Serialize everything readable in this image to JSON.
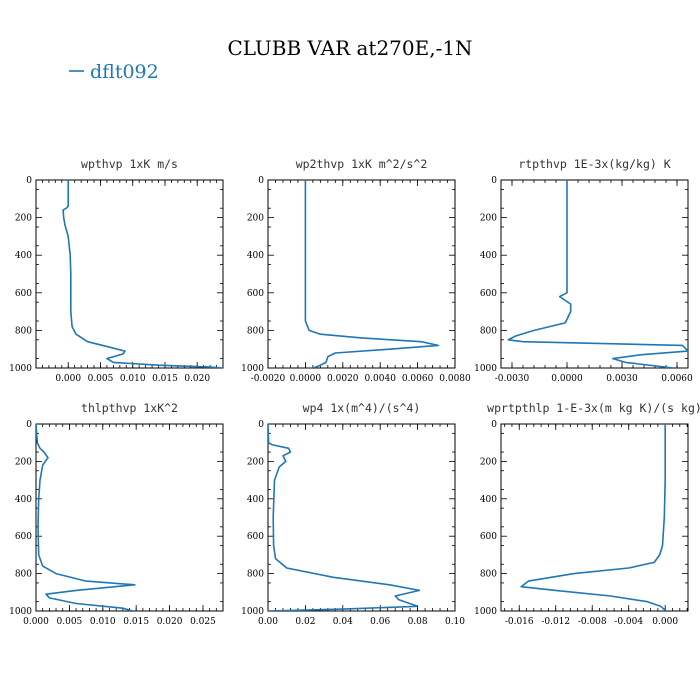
{
  "figure": {
    "title": "CLUBB VAR at270E,-1N",
    "legend": {
      "label": "dflt092",
      "color": "#1f77b4"
    }
  },
  "chart_data": [
    {
      "type": "line",
      "title": "wpthvp  1xK m/s",
      "xlim": [
        -0.005,
        0.024
      ],
      "ylim": [
        1000,
        0
      ],
      "xticks": [
        0.0,
        0.005,
        0.01,
        0.015,
        0.02
      ],
      "xtick_labels": [
        "0.000",
        "0.005",
        "0.010",
        "0.015",
        "0.020"
      ],
      "yticks": [
        0,
        200,
        400,
        600,
        800,
        1000
      ],
      "ytick_labels": [
        "0",
        "200",
        "400",
        "600",
        "800",
        "1000"
      ],
      "x": [
        0.0,
        0.0,
        -0.0003,
        -0.0008,
        -0.0007,
        -0.0005,
        0.0,
        0.0003,
        0.0004,
        0.0004,
        0.0004,
        0.0006,
        0.0012,
        0.003,
        0.0065,
        0.0088,
        0.0085,
        0.006,
        0.007,
        0.014,
        0.022,
        0.024
      ],
      "y": [
        0,
        140,
        150,
        160,
        200,
        240,
        300,
        400,
        500,
        600,
        700,
        780,
        820,
        860,
        890,
        910,
        925,
        950,
        970,
        985,
        995,
        1000
      ]
    },
    {
      "type": "line",
      "title": "wp2thvp  1xK m^2/s^2",
      "xlim": [
        -0.002,
        0.008
      ],
      "ylim": [
        1000,
        0
      ],
      "xticks": [
        -0.002,
        0.0,
        0.002,
        0.004,
        0.006,
        0.008
      ],
      "xtick_labels": [
        "-0.0020",
        "0.0000",
        "0.0020",
        "0.0040",
        "0.0060",
        "0.0080"
      ],
      "yticks": [
        0,
        200,
        400,
        600,
        800,
        1000
      ],
      "ytick_labels": [
        "0",
        "200",
        "400",
        "600",
        "800",
        "1000"
      ],
      "x": [
        0.0,
        0.0,
        0.0,
        0.0,
        0.0002,
        0.0008,
        0.003,
        0.0062,
        0.0071,
        0.0045,
        0.0016,
        0.0012,
        0.0011,
        0.0007,
        0.0004
      ],
      "y": [
        0,
        400,
        600,
        750,
        800,
        820,
        840,
        860,
        880,
        900,
        920,
        940,
        970,
        990,
        1000
      ]
    },
    {
      "type": "line",
      "title": "rtpthvp  1E-3x(kg/kg) K",
      "xlim": [
        -0.0036,
        0.0066
      ],
      "ylim": [
        1000,
        0
      ],
      "xticks": [
        -0.003,
        0.0,
        0.003,
        0.006
      ],
      "xtick_labels": [
        "-0.0030",
        "0.0000",
        "0.0030",
        "0.0060"
      ],
      "yticks": [
        0,
        200,
        400,
        600,
        800,
        1000
      ],
      "ytick_labels": [
        "0",
        "200",
        "400",
        "600",
        "800",
        "1000"
      ],
      "x": [
        0.0,
        0.0,
        0.0,
        0.0,
        -0.0004,
        0.0002,
        0.0002,
        -0.0001,
        -0.0018,
        -0.0028,
        -0.0032,
        -0.0024,
        0.0063,
        0.0066,
        0.004,
        0.0025,
        0.0032,
        0.0058
      ],
      "y": [
        0,
        300,
        500,
        600,
        620,
        660,
        700,
        760,
        800,
        830,
        850,
        860,
        880,
        910,
        930,
        950,
        970,
        1000
      ]
    },
    {
      "type": "line",
      "title": "thlpthvp  1xK^2",
      "xlim": [
        0.0,
        0.028
      ],
      "ylim": [
        1000,
        0
      ],
      "xticks": [
        0.0,
        0.005,
        0.01,
        0.015,
        0.02,
        0.025
      ],
      "xtick_labels": [
        "0.000",
        "0.005",
        "0.010",
        "0.015",
        "0.020",
        "0.025"
      ],
      "yticks": [
        0,
        200,
        400,
        600,
        800,
        1000
      ],
      "ytick_labels": [
        "0",
        "200",
        "400",
        "600",
        "800",
        "1000"
      ],
      "x": [
        0.0,
        0.0002,
        0.0006,
        0.0012,
        0.0018,
        0.001,
        0.0006,
        0.0004,
        0.0003,
        0.0004,
        0.001,
        0.003,
        0.0075,
        0.0148,
        0.006,
        0.0015,
        0.002,
        0.006,
        0.013,
        0.0145
      ],
      "y": [
        0,
        100,
        130,
        150,
        180,
        220,
        300,
        400,
        550,
        700,
        760,
        800,
        840,
        860,
        890,
        910,
        930,
        960,
        985,
        1000
      ]
    },
    {
      "type": "line",
      "title": "wp4  1x(m^4)/(s^4)",
      "xlim": [
        0.0,
        0.1
      ],
      "ylim": [
        1000,
        0
      ],
      "xticks": [
        0.0,
        0.02,
        0.04,
        0.06,
        0.08,
        0.1
      ],
      "xtick_labels": [
        "0.00",
        "0.02",
        "0.04",
        "0.06",
        "0.08",
        "0.10"
      ],
      "yticks": [
        0,
        200,
        400,
        600,
        800,
        1000
      ],
      "ytick_labels": [
        "0",
        "200",
        "400",
        "600",
        "800",
        "1000"
      ],
      "x": [
        0.0,
        0.0003,
        0.002,
        0.011,
        0.012,
        0.008,
        0.0095,
        0.006,
        0.0035,
        0.0028,
        0.003,
        0.004,
        0.01,
        0.035,
        0.065,
        0.081,
        0.068,
        0.07,
        0.08,
        0.04,
        0.0
      ],
      "y": [
        0,
        100,
        110,
        130,
        150,
        170,
        200,
        230,
        300,
        500,
        650,
        720,
        770,
        820,
        860,
        890,
        920,
        940,
        975,
        990,
        1000
      ]
    },
    {
      "type": "line",
      "title": "wprtpthlp  1-E-3x(m kg K)/(s kg)",
      "xlim": [
        -0.018,
        0.0025
      ],
      "ylim": [
        1000,
        0
      ],
      "xticks": [
        -0.016,
        -0.012,
        -0.008,
        -0.004,
        0.0
      ],
      "xtick_labels": [
        "-0.016",
        "-0.012",
        "-0.008",
        "-0.004",
        "0.000"
      ],
      "yticks": [
        0,
        200,
        400,
        600,
        800,
        1000
      ],
      "ytick_labels": [
        "0",
        "200",
        "400",
        "600",
        "800",
        "1000"
      ],
      "x": [
        0.0,
        0.0,
        -0.0001,
        -0.0003,
        -0.0006,
        -0.0012,
        -0.004,
        -0.01,
        -0.015,
        -0.0158,
        -0.012,
        -0.006,
        -0.002,
        -0.0005,
        0.0001
      ],
      "y": [
        0,
        300,
        500,
        650,
        700,
        740,
        770,
        800,
        840,
        870,
        890,
        920,
        950,
        975,
        1000
      ]
    }
  ]
}
